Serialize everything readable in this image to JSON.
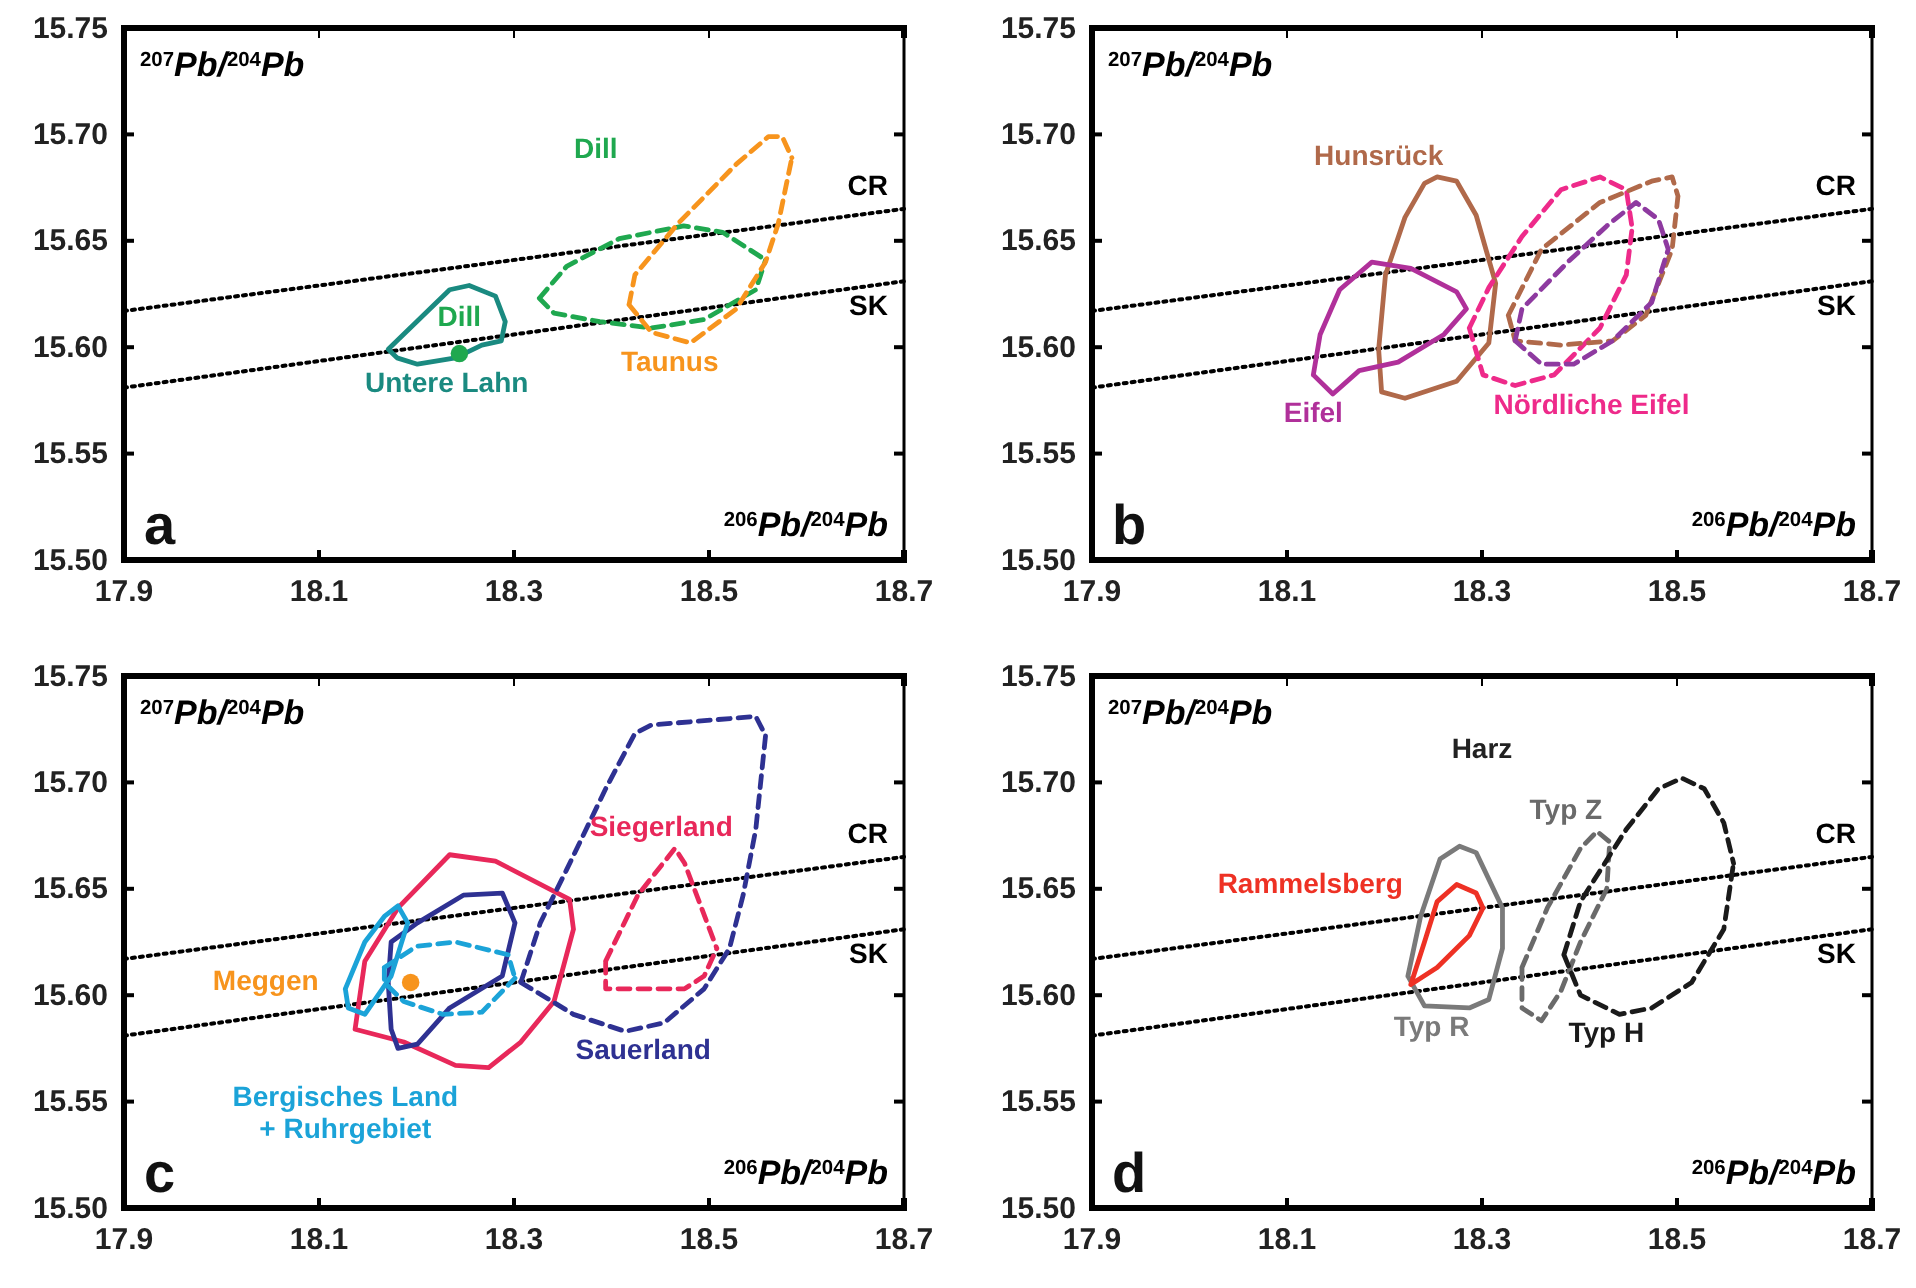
{
  "chart_data": [
    {
      "type": "line",
      "xlabel": "$^{206}$Pb/$^{204}$Pb",
      "ylabel": "$^{207}$Pb/$^{204}$Pb",
      "annotations": [
        "a"
      ],
      "xlim": [
        17.9,
        18.7
      ],
      "ylim": [
        15.5,
        15.75
      ],
      "xticks": [
        17.9,
        18.1,
        18.3,
        18.5,
        18.7
      ],
      "yticks": [
        {
          "value": 15.5,
          "label": "15.50"
        },
        {
          "value": 15.55,
          "label": "15.55"
        },
        {
          "value": 15.6,
          "label": "15.60"
        },
        {
          "value": 15.65,
          "label": "15.65"
        },
        {
          "value": 15.7,
          "label": "15.70"
        },
        {
          "value": 15.75,
          "label": "15.75"
        }
      ],
      "grid": false,
      "series": [
        {
          "name": "CR",
          "color": "#000000",
          "line_style": "dotted",
          "x": [
            17.9,
            18.7
          ],
          "values": [
            15.617,
            15.665
          ]
        },
        {
          "name": "SK",
          "color": "#000000",
          "line_style": "dotted",
          "x": [
            17.9,
            18.7
          ],
          "values": [
            15.581,
            15.631
          ]
        },
        {
          "name": "Untere Lahn",
          "color": "#1a8a80",
          "line_style": "solid",
          "x": [
            18.171,
            18.234,
            18.254,
            18.281,
            18.291,
            null,
            18.171,
            18.18,
            18.201,
            18.24,
            18.267,
            18.287,
            18.291
          ],
          "values": [
            15.599,
            15.627,
            15.629,
            15.624,
            15.612,
            null,
            15.599,
            15.595,
            15.592,
            15.595,
            15.601,
            15.603,
            15.612
          ]
        },
        {
          "name": "Dill",
          "type": "scatter",
          "marker": "circle",
          "color": "#1fa84f",
          "x": [
            18.244
          ],
          "values": [
            15.597
          ]
        },
        {
          "name": "Dill",
          "color": "#1fa84f",
          "line_style": "dashed",
          "x": [
            18.326,
            18.354,
            18.408,
            18.474,
            18.514,
            18.558,
            null,
            18.326,
            18.341,
            18.388,
            18.441,
            18.495,
            18.548,
            18.558
          ],
          "values": [
            15.623,
            15.638,
            15.651,
            15.657,
            15.654,
            15.641,
            null,
            15.623,
            15.616,
            15.612,
            15.609,
            15.613,
            15.627,
            15.641
          ]
        },
        {
          "name": "Taunus",
          "color": "#f7941d",
          "line_style": "dashed",
          "x": [
            18.418,
            18.424,
            18.468,
            18.528,
            18.561,
            18.575,
            18.585,
            null,
            18.418,
            18.441,
            18.481,
            18.528,
            18.558,
            18.571,
            18.585
          ],
          "values": [
            15.62,
            15.634,
            15.658,
            15.686,
            15.699,
            15.699,
            15.689,
            null,
            15.62,
            15.607,
            15.602,
            15.618,
            15.64,
            15.658,
            15.689
          ]
        }
      ]
    },
    {
      "type": "line",
      "xlabel": "$^{206}$Pb/$^{204}$Pb",
      "ylabel": "$^{207}$Pb/$^{204}$Pb",
      "annotations": [
        "b"
      ],
      "xlim": [
        17.9,
        18.7
      ],
      "ylim": [
        15.5,
        15.75
      ],
      "xticks": [
        17.9,
        18.1,
        18.3,
        18.5,
        18.7
      ],
      "yticks": [
        {
          "value": 15.5,
          "label": "15.50"
        },
        {
          "value": 15.55,
          "label": "15.55"
        },
        {
          "value": 15.6,
          "label": "15.60"
        },
        {
          "value": 15.65,
          "label": "15.65"
        },
        {
          "value": 15.7,
          "label": "15.70"
        },
        {
          "value": 15.75,
          "label": "15.75"
        }
      ],
      "grid": false,
      "series": [
        {
          "name": "CR",
          "color": "#000000",
          "line_style": "dotted",
          "x": [
            17.9,
            18.7
          ],
          "values": [
            15.617,
            15.665
          ]
        },
        {
          "name": "SK",
          "color": "#000000",
          "line_style": "dotted",
          "x": [
            17.9,
            18.7
          ],
          "values": [
            15.581,
            15.631
          ]
        },
        {
          "name": "Hunsrück",
          "color": "#b0694a",
          "line_style": "solid",
          "x": [
            18.194,
            18.201,
            18.221,
            18.241,
            18.254,
            18.274,
            18.294,
            18.314,
            null,
            18.194,
            18.197,
            18.221,
            18.274,
            18.307,
            18.314
          ],
          "values": [
            15.599,
            15.634,
            15.661,
            15.677,
            15.68,
            15.678,
            15.662,
            15.63,
            null,
            15.599,
            15.579,
            15.576,
            15.584,
            15.602,
            15.63
          ]
        },
        {
          "name": "Eifel",
          "color": "#b0309a",
          "line_style": "solid",
          "x": [
            18.127,
            18.134,
            18.154,
            18.187,
            18.227,
            18.274,
            18.284,
            null,
            18.127,
            18.147,
            18.174,
            18.214,
            18.261,
            18.284
          ],
          "values": [
            15.587,
            15.606,
            15.627,
            15.64,
            15.637,
            15.626,
            15.618,
            null,
            15.587,
            15.578,
            15.589,
            15.593,
            15.606,
            15.618
          ]
        },
        {
          "name": "Nördliche Eifel",
          "color": "#ee2a8a",
          "line_style": "dashed",
          "x": [
            18.287,
            18.307,
            18.341,
            18.381,
            18.421,
            18.448,
            18.454,
            null,
            18.287,
            18.301,
            18.334,
            18.374,
            18.421,
            18.448,
            18.454
          ],
          "values": [
            15.609,
            15.628,
            15.652,
            15.674,
            15.68,
            15.674,
            15.656,
            null,
            15.609,
            15.587,
            15.582,
            15.587,
            15.609,
            15.634,
            15.656
          ]
        },
        {
          "color": "#b0694a",
          "line_style": "dashed",
          "x": [
            18.327,
            18.361,
            18.421,
            18.474,
            18.495,
            18.501,
            null,
            18.327,
            18.334,
            18.381,
            18.434,
            18.468,
            18.495,
            18.501
          ],
          "values": [
            15.615,
            15.646,
            15.668,
            15.678,
            15.68,
            15.671,
            null,
            15.615,
            15.603,
            15.601,
            15.603,
            15.615,
            15.646,
            15.671
          ]
        },
        {
          "color": "#8e3aa0",
          "line_style": "dashed",
          "x": [
            18.334,
            18.341,
            18.388,
            18.428,
            18.458,
            18.481,
            18.491,
            null,
            18.334,
            18.361,
            18.394,
            18.434,
            18.474,
            18.491
          ],
          "values": [
            15.603,
            15.618,
            15.64,
            15.657,
            15.668,
            15.66,
            15.646,
            null,
            15.603,
            15.592,
            15.592,
            15.603,
            15.621,
            15.646
          ]
        }
      ]
    },
    {
      "type": "line",
      "xlabel": "$^{206}$Pb/$^{204}$Pb",
      "ylabel": "$^{207}$Pb/$^{204}$Pb",
      "annotations": [
        "c"
      ],
      "xlim": [
        17.9,
        18.7
      ],
      "ylim": [
        15.5,
        15.75
      ],
      "xticks": [
        17.9,
        18.1,
        18.3,
        18.5,
        18.7
      ],
      "yticks": [
        {
          "value": 15.5,
          "label": "15.50"
        },
        {
          "value": 15.55,
          "label": "15.55"
        },
        {
          "value": 15.6,
          "label": "15.60"
        },
        {
          "value": 15.65,
          "label": "15.65"
        },
        {
          "value": 15.7,
          "label": "15.70"
        },
        {
          "value": 15.75,
          "label": "15.75"
        }
      ],
      "grid": false,
      "series": [
        {
          "name": "CR",
          "color": "#000000",
          "line_style": "dotted",
          "x": [
            17.9,
            18.7
          ],
          "values": [
            15.617,
            15.665
          ]
        },
        {
          "name": "SK",
          "color": "#000000",
          "line_style": "dotted",
          "x": [
            17.9,
            18.7
          ],
          "values": [
            15.581,
            15.631
          ]
        },
        {
          "color": "#e8285a",
          "line_style": "solid",
          "x": [
            18.137,
            18.147,
            18.181,
            18.234,
            18.281,
            18.357,
            18.361,
            null,
            18.137,
            18.187,
            18.24,
            18.274,
            18.307,
            18.341,
            18.361
          ],
          "values": [
            15.584,
            15.616,
            15.641,
            15.666,
            15.663,
            15.645,
            15.631,
            null,
            15.584,
            15.578,
            15.567,
            15.566,
            15.578,
            15.597,
            15.631
          ]
        },
        {
          "name": "Siegerland",
          "color": "#e8285a",
          "line_style": "dashed",
          "x": [
            18.394,
            18.427,
            18.465,
            18.475,
            18.508,
            null,
            18.394,
            18.394,
            18.475,
            18.495,
            18.508
          ],
          "values": [
            15.616,
            15.647,
            15.669,
            15.662,
            15.622,
            null,
            15.616,
            15.603,
            15.603,
            15.609,
            15.622
          ]
        },
        {
          "color": "#2e3192",
          "line_style": "solid",
          "x": [
            18.171,
            18.174,
            18.201,
            18.248,
            18.288,
            18.301,
            null,
            18.171,
            18.174,
            18.181,
            18.201,
            18.234,
            18.288,
            18.301
          ],
          "values": [
            15.606,
            15.625,
            15.634,
            15.647,
            15.648,
            15.634,
            null,
            15.606,
            15.584,
            15.575,
            15.577,
            15.594,
            15.609,
            15.634
          ]
        },
        {
          "name": "Sauerland",
          "color": "#2e3192",
          "line_style": "dashed",
          "x": [
            18.307,
            18.327,
            18.354,
            18.394,
            18.424,
            18.441,
            18.548,
            18.558,
            null,
            18.307,
            18.361,
            18.414,
            18.454,
            18.495,
            18.521,
            18.535,
            18.548,
            18.558
          ],
          "values": [
            15.606,
            15.634,
            15.659,
            15.697,
            15.723,
            15.727,
            15.731,
            15.722,
            null,
            15.606,
            15.591,
            15.583,
            15.587,
            15.603,
            15.622,
            15.647,
            15.678,
            15.722
          ]
        },
        {
          "name": "Bergisches Land\n+ Ruhrgebiet",
          "color": "#1ba3d8",
          "line_style": "solid",
          "x": [
            18.127,
            18.147,
            18.167,
            18.181,
            18.191,
            null,
            18.127,
            18.13,
            18.147,
            18.174,
            18.191
          ],
          "values": [
            15.603,
            15.625,
            15.637,
            15.642,
            15.634,
            null,
            15.603,
            15.594,
            15.591,
            15.609,
            15.634
          ]
        },
        {
          "color": "#1ba3d8",
          "line_style": "dashed",
          "x": [
            18.167,
            18.2,
            18.24,
            18.294,
            18.301,
            null,
            18.167,
            18.167,
            18.187,
            18.227,
            18.267,
            18.301
          ],
          "values": [
            15.613,
            15.623,
            15.625,
            15.619,
            15.608,
            null,
            15.613,
            15.606,
            15.597,
            15.591,
            15.592,
            15.608
          ]
        },
        {
          "name": "Meggen",
          "type": "scatter",
          "marker": "circle",
          "color": "#f7941d",
          "x": [
            18.194
          ],
          "values": [
            15.606
          ]
        }
      ]
    },
    {
      "type": "line",
      "xlabel": "$^{206}$Pb/$^{204}$Pb",
      "ylabel": "$^{207}$Pb/$^{204}$Pb",
      "annotations": [
        "d",
        "Harz"
      ],
      "xlim": [
        17.9,
        18.7
      ],
      "ylim": [
        15.5,
        15.75
      ],
      "xticks": [
        17.9,
        18.1,
        18.3,
        18.5,
        18.7
      ],
      "yticks": [
        {
          "value": 15.5,
          "label": "15.50"
        },
        {
          "value": 15.55,
          "label": "15.55"
        },
        {
          "value": 15.6,
          "label": "15.60"
        },
        {
          "value": 15.65,
          "label": "15.65"
        },
        {
          "value": 15.7,
          "label": "15.70"
        },
        {
          "value": 15.75,
          "label": "15.75"
        }
      ],
      "grid": false,
      "series": [
        {
          "name": "CR",
          "color": "#000000",
          "line_style": "dotted",
          "x": [
            17.9,
            18.7
          ],
          "values": [
            15.617,
            15.665
          ]
        },
        {
          "name": "SK",
          "color": "#000000",
          "line_style": "dotted",
          "x": [
            17.9,
            18.7
          ],
          "values": [
            15.581,
            15.631
          ]
        },
        {
          "name": "Typ R",
          "color": "#7a7a7a",
          "line_style": "solid",
          "x": [
            18.224,
            18.237,
            18.257,
            18.277,
            18.294,
            18.321,
            null,
            18.224,
            18.241,
            18.287,
            18.307,
            18.321,
            18.321
          ],
          "values": [
            15.609,
            15.637,
            15.664,
            15.67,
            15.667,
            15.641,
            null,
            15.609,
            15.595,
            15.594,
            15.598,
            15.622,
            15.641
          ]
        },
        {
          "name": "Rammelsberg",
          "color": "#ee3124",
          "line_style": "solid",
          "x": [
            18.227,
            18.241,
            18.254,
            18.274,
            18.294,
            18.301,
            null,
            18.227,
            18.254,
            18.287,
            18.301
          ],
          "values": [
            15.605,
            15.625,
            15.644,
            15.652,
            15.648,
            15.641,
            null,
            15.605,
            15.613,
            15.628,
            15.641
          ]
        },
        {
          "name": "Typ Z",
          "color": "#6a6a6a",
          "line_style": "dashed",
          "x": [
            18.341,
            18.367,
            18.401,
            18.418,
            18.431,
            null,
            18.341,
            18.341,
            18.361,
            18.381,
            18.401,
            18.428,
            18.431
          ],
          "values": [
            15.613,
            15.641,
            15.669,
            15.677,
            15.672,
            null,
            15.613,
            15.594,
            15.588,
            15.602,
            15.625,
            15.65,
            15.672
          ]
        },
        {
          "name": "Typ H",
          "color": "#1a1a1a",
          "line_style": "dashed",
          "x": [
            18.384,
            18.401,
            18.448,
            18.481,
            18.505,
            18.528,
            18.548,
            18.558,
            null,
            18.384,
            18.401,
            18.441,
            18.474,
            18.515,
            18.548,
            18.558
          ],
          "values": [
            15.619,
            15.644,
            15.678,
            15.697,
            15.702,
            15.697,
            15.681,
            15.662,
            null,
            15.619,
            15.6,
            15.591,
            15.594,
            15.606,
            15.631,
            15.662
          ]
        }
      ]
    }
  ]
}
